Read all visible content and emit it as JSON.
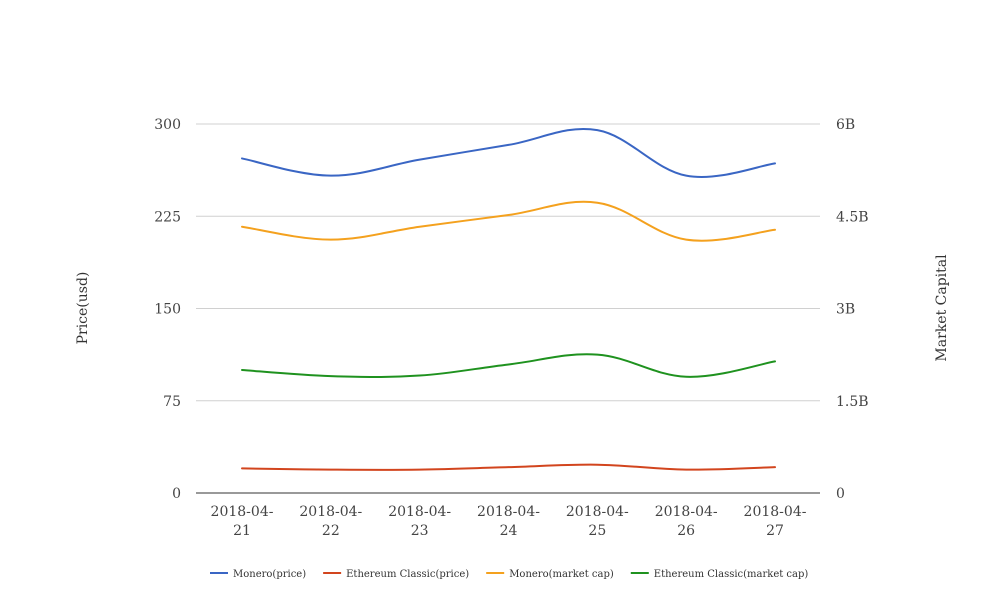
{
  "chart_data": {
    "type": "line",
    "categories": [
      [
        "2018-04-",
        "21"
      ],
      [
        "2018-04-",
        "22"
      ],
      [
        "2018-04-",
        "23"
      ],
      [
        "2018-04-",
        "24"
      ],
      [
        "2018-04-",
        "25"
      ],
      [
        "2018-04-",
        "26"
      ],
      [
        "2018-04-",
        "27"
      ]
    ],
    "left_axis": {
      "title": "Price(usd)",
      "range": [
        0,
        300
      ],
      "ticks": [
        0,
        75,
        150,
        225,
        300
      ],
      "tick_labels": [
        "0",
        "75",
        "150",
        "225",
        "300"
      ]
    },
    "right_axis": {
      "title": "Market Capital",
      "range": [
        0,
        6000000000
      ],
      "ticks": [
        0,
        1500000000,
        3000000000,
        4500000000,
        6000000000
      ],
      "tick_labels": [
        "0",
        "1.5B",
        "3B",
        "4.5B",
        "6B"
      ]
    },
    "grid": true,
    "legend_position": "bottom",
    "series": [
      {
        "name": "Monero(price)",
        "axis": "left",
        "color": "#3a66c4",
        "values": [
          272,
          258,
          271,
          283,
          295,
          258,
          268
        ]
      },
      {
        "name": "Ethereum Classic(price)",
        "axis": "left",
        "color": "#d2451e",
        "values": [
          20,
          19,
          19,
          21,
          23,
          19,
          21
        ]
      },
      {
        "name": "Monero(market cap)",
        "axis": "right",
        "color": "#f4a11e",
        "values": [
          4330000000,
          4120000000,
          4330000000,
          4520000000,
          4720000000,
          4120000000,
          4280000000
        ]
      },
      {
        "name": "Ethereum Classic(market cap)",
        "axis": "right",
        "color": "#1f921f",
        "values": [
          2000000000,
          1900000000,
          1910000000,
          2090000000,
          2250000000,
          1890000000,
          2140000000
        ]
      }
    ]
  }
}
